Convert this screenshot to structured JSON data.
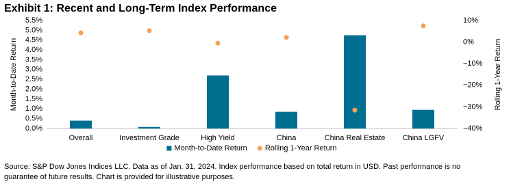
{
  "chart_data": {
    "type": "bar",
    "title": "Exhibit 1: Recent and Long-Term Index Performance",
    "y_label": "Month-to-Date Return",
    "y2_label": "Rolling 1-Year Return",
    "categories": [
      "Overall",
      "Investment Grade",
      "High Yield",
      "China",
      "China Real Estate",
      "China LGFV"
    ],
    "series": [
      {
        "name": "Month-to-Date Return",
        "color": "#006e8f",
        "values": [
          0.4,
          0.08,
          2.7,
          0.85,
          4.75,
          0.95
        ]
      },
      {
        "name": "Rolling 1-Year Return",
        "color": "#f4a259",
        "axis": "y2",
        "marker": "dot",
        "values": [
          4.3,
          5.3,
          -0.5,
          2.2,
          -31.5,
          7.5
        ]
      }
    ],
    "ylim": [
      0,
      5.5
    ],
    "yticks": [
      {
        "value": 0,
        "label": "0.0%"
      },
      {
        "value": 0.5,
        "label": "0.5%"
      },
      {
        "value": 1,
        "label": "1.0%"
      },
      {
        "value": 1.5,
        "label": "1.5%"
      },
      {
        "value": 2,
        "label": "2.0%"
      },
      {
        "value": 2.5,
        "label": "2.5%"
      },
      {
        "value": 3,
        "label": "3.0%"
      },
      {
        "value": 3.5,
        "label": "3.5%"
      },
      {
        "value": 4,
        "label": "4.0%"
      },
      {
        "value": 4.5,
        "label": "4.5%"
      },
      {
        "value": 5,
        "label": "5.0%"
      },
      {
        "value": 5.5,
        "label": "5.5%"
      }
    ],
    "y2lim": [
      -40,
      10
    ],
    "y2ticks": [
      {
        "value": 10,
        "label": "10%"
      },
      {
        "value": 0,
        "label": "0%"
      },
      {
        "value": -10,
        "label": "−10%"
      },
      {
        "value": -20,
        "label": "−20%"
      },
      {
        "value": -30,
        "label": "−30%"
      },
      {
        "value": -40,
        "label": "−40%"
      }
    ],
    "grid": false,
    "legend": "bottom",
    "source": [
      "Source: S&P Dow Jones Indices LLC.  Data as of Jan. 31, 2024.  Index performance based on total return in USD.  Past performance is no",
      "guarantee of future results.  Chart is provided for illustrative purposes."
    ]
  }
}
